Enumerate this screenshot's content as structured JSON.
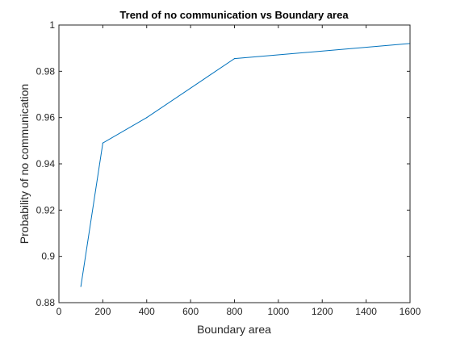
{
  "chart_data": {
    "type": "line",
    "title": "Trend of no communication vs Boundary area",
    "xlabel": "Boundary area",
    "ylabel": "Probability of no communication",
    "xlim": [
      0,
      1600
    ],
    "ylim": [
      0.88,
      1
    ],
    "xticks": [
      0,
      200,
      400,
      600,
      800,
      1000,
      1200,
      1400,
      1600
    ],
    "yticks": [
      0.88,
      0.9,
      0.92,
      0.94,
      0.96,
      0.98,
      1
    ],
    "x_tick_labels": [
      "0",
      "200",
      "400",
      "600",
      "800",
      "1000",
      "1200",
      "1400",
      "1600"
    ],
    "y_tick_labels": [
      "0.88",
      "0.9",
      "0.92",
      "0.94",
      "0.96",
      "0.98",
      "1"
    ],
    "grid": false,
    "series": [
      {
        "x": [
          100,
          200,
          400,
          800,
          1600
        ],
        "y": [
          0.887,
          0.949,
          0.96,
          0.9855,
          0.992
        ],
        "color": "#0072BD"
      }
    ]
  }
}
